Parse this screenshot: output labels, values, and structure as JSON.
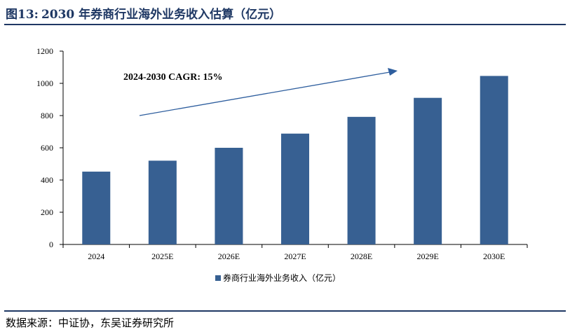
{
  "title": {
    "figure_label": "图13:",
    "text": "2030 年券商行业海外业务收入估算（亿元）"
  },
  "source": "数据来源：中证协，东吴证券研究所",
  "colors": {
    "bar": "#376092",
    "title": "#1f3864",
    "arrow": "#2e5e9e"
  },
  "chart_data": {
    "type": "bar",
    "categories": [
      "2024",
      "2025E",
      "2026E",
      "2027E",
      "2028E",
      "2029E",
      "2030E"
    ],
    "series": [
      {
        "name": "券商行业海外业务收入（亿元）",
        "values": [
          452,
          520,
          600,
          688,
          792,
          910,
          1046
        ]
      }
    ],
    "ylim": [
      0,
      1200
    ],
    "yticks": [
      0,
      200,
      400,
      600,
      800,
      1000,
      1200
    ],
    "grid": false,
    "legend": "bottom",
    "annotation": "2024-2030 CAGR:   15%"
  }
}
